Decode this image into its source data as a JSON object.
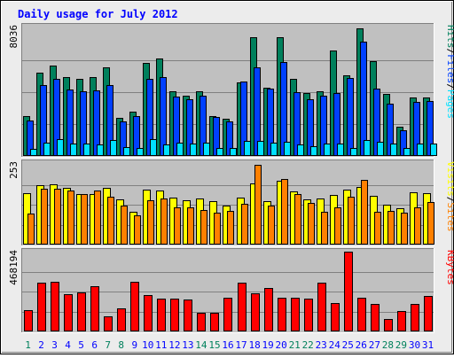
{
  "title": "Daily usage for July 2012",
  "colors": {
    "page_bg": "#ececec",
    "plot_bg": "#c0c0c0",
    "title": "#0000ff",
    "hits": "#00805c",
    "files": "#0040ff",
    "pages": "#00e0ff",
    "visits": "#ffff00",
    "sites": "#ff8000",
    "kbytes": "#ff0000",
    "weekend_label": "#00805c",
    "weekday_label": "#0000ff",
    "max_label": "#000000"
  },
  "chart_data": [
    {
      "type": "bar",
      "name": "requests-panel",
      "max_label": "8036",
      "ylim": [
        0,
        8036
      ],
      "legend": [
        {
          "text": "Pages",
          "color": "#00e0ff"
        },
        {
          "text": "/",
          "color": "#000000"
        },
        {
          "text": "Files",
          "color": "#0040ff"
        },
        {
          "text": "/",
          "color": "#000000"
        },
        {
          "text": "Hits",
          "color": "#00805c"
        }
      ],
      "series": [
        {
          "key": "hits",
          "values": [
            2520,
            5260,
            5700,
            4990,
            4880,
            4950,
            5560,
            2390,
            2770,
            5870,
            6130,
            4060,
            3820,
            4100,
            2530,
            2360,
            4620,
            7460,
            4300,
            7460,
            4850,
            3950,
            4090,
            6620,
            5070,
            8036,
            5990,
            3910,
            1850,
            3660,
            3700
          ]
        },
        {
          "key": "files",
          "values": [
            2260,
            4450,
            4880,
            4200,
            4070,
            4120,
            4460,
            2150,
            2530,
            4850,
            4940,
            3750,
            3570,
            3800,
            2430,
            2200,
            4700,
            5580,
            4250,
            5890,
            4030,
            3550,
            3820,
            3980,
            4930,
            7210,
            4260,
            3310,
            1620,
            3410,
            3450
          ]
        },
        {
          "key": "pages",
          "values": [
            420,
            810,
            1050,
            760,
            800,
            740,
            1020,
            580,
            500,
            1060,
            730,
            820,
            780,
            820,
            520,
            530,
            950,
            950,
            820,
            910,
            720,
            590,
            760,
            760,
            480,
            1010,
            910,
            780,
            510,
            780,
            760
          ]
        }
      ]
    },
    {
      "type": "bar",
      "name": "visitors-panel",
      "max_label": "253",
      "ylim": [
        0,
        253
      ],
      "legend": [
        {
          "text": "Sites",
          "color": "#ff8000"
        },
        {
          "text": "/",
          "color": "#000000"
        },
        {
          "text": "Visits",
          "color": "#ffff00"
        }
      ],
      "series": [
        {
          "key": "visits",
          "values": [
            163,
            187,
            192,
            180,
            160,
            159,
            180,
            144,
            105,
            175,
            172,
            149,
            141,
            147,
            137,
            123,
            148,
            194,
            139,
            201,
            170,
            142,
            147,
            158,
            173,
            184,
            156,
            127,
            116,
            165,
            162
          ]
        },
        {
          "key": "sites",
          "values": [
            99,
            177,
            176,
            172,
            160,
            172,
            153,
            123,
            93,
            140,
            146,
            117,
            117,
            111,
            102,
            106,
            130,
            253,
            123,
            209,
            160,
            133,
            103,
            117,
            152,
            204,
            104,
            108,
            100,
            118,
            135
          ]
        }
      ]
    },
    {
      "type": "bar",
      "name": "kbytes-panel",
      "max_label": "468194",
      "ylim": [
        0,
        468194
      ],
      "legend": [
        {
          "text": "KBytes",
          "color": "#ff0000"
        }
      ],
      "series": [
        {
          "key": "kbytes",
          "values": [
            127000,
            287000,
            290000,
            217000,
            228000,
            266000,
            91000,
            136000,
            291000,
            213000,
            191000,
            191000,
            189000,
            110000,
            108000,
            199000,
            285000,
            222000,
            254000,
            196000,
            196000,
            193000,
            284000,
            165000,
            468194,
            199000,
            161000,
            73000,
            119000,
            161000,
            209000
          ]
        }
      ]
    }
  ],
  "days": [
    "1",
    "2",
    "3",
    "4",
    "5",
    "6",
    "7",
    "8",
    "9",
    "10",
    "11",
    "12",
    "13",
    "14",
    "15",
    "16",
    "17",
    "18",
    "19",
    "20",
    "21",
    "22",
    "23",
    "24",
    "25",
    "26",
    "27",
    "28",
    "29",
    "30",
    "31"
  ],
  "weekend_days": [
    "1",
    "7",
    "8",
    "14",
    "15",
    "21",
    "22",
    "28",
    "29"
  ]
}
